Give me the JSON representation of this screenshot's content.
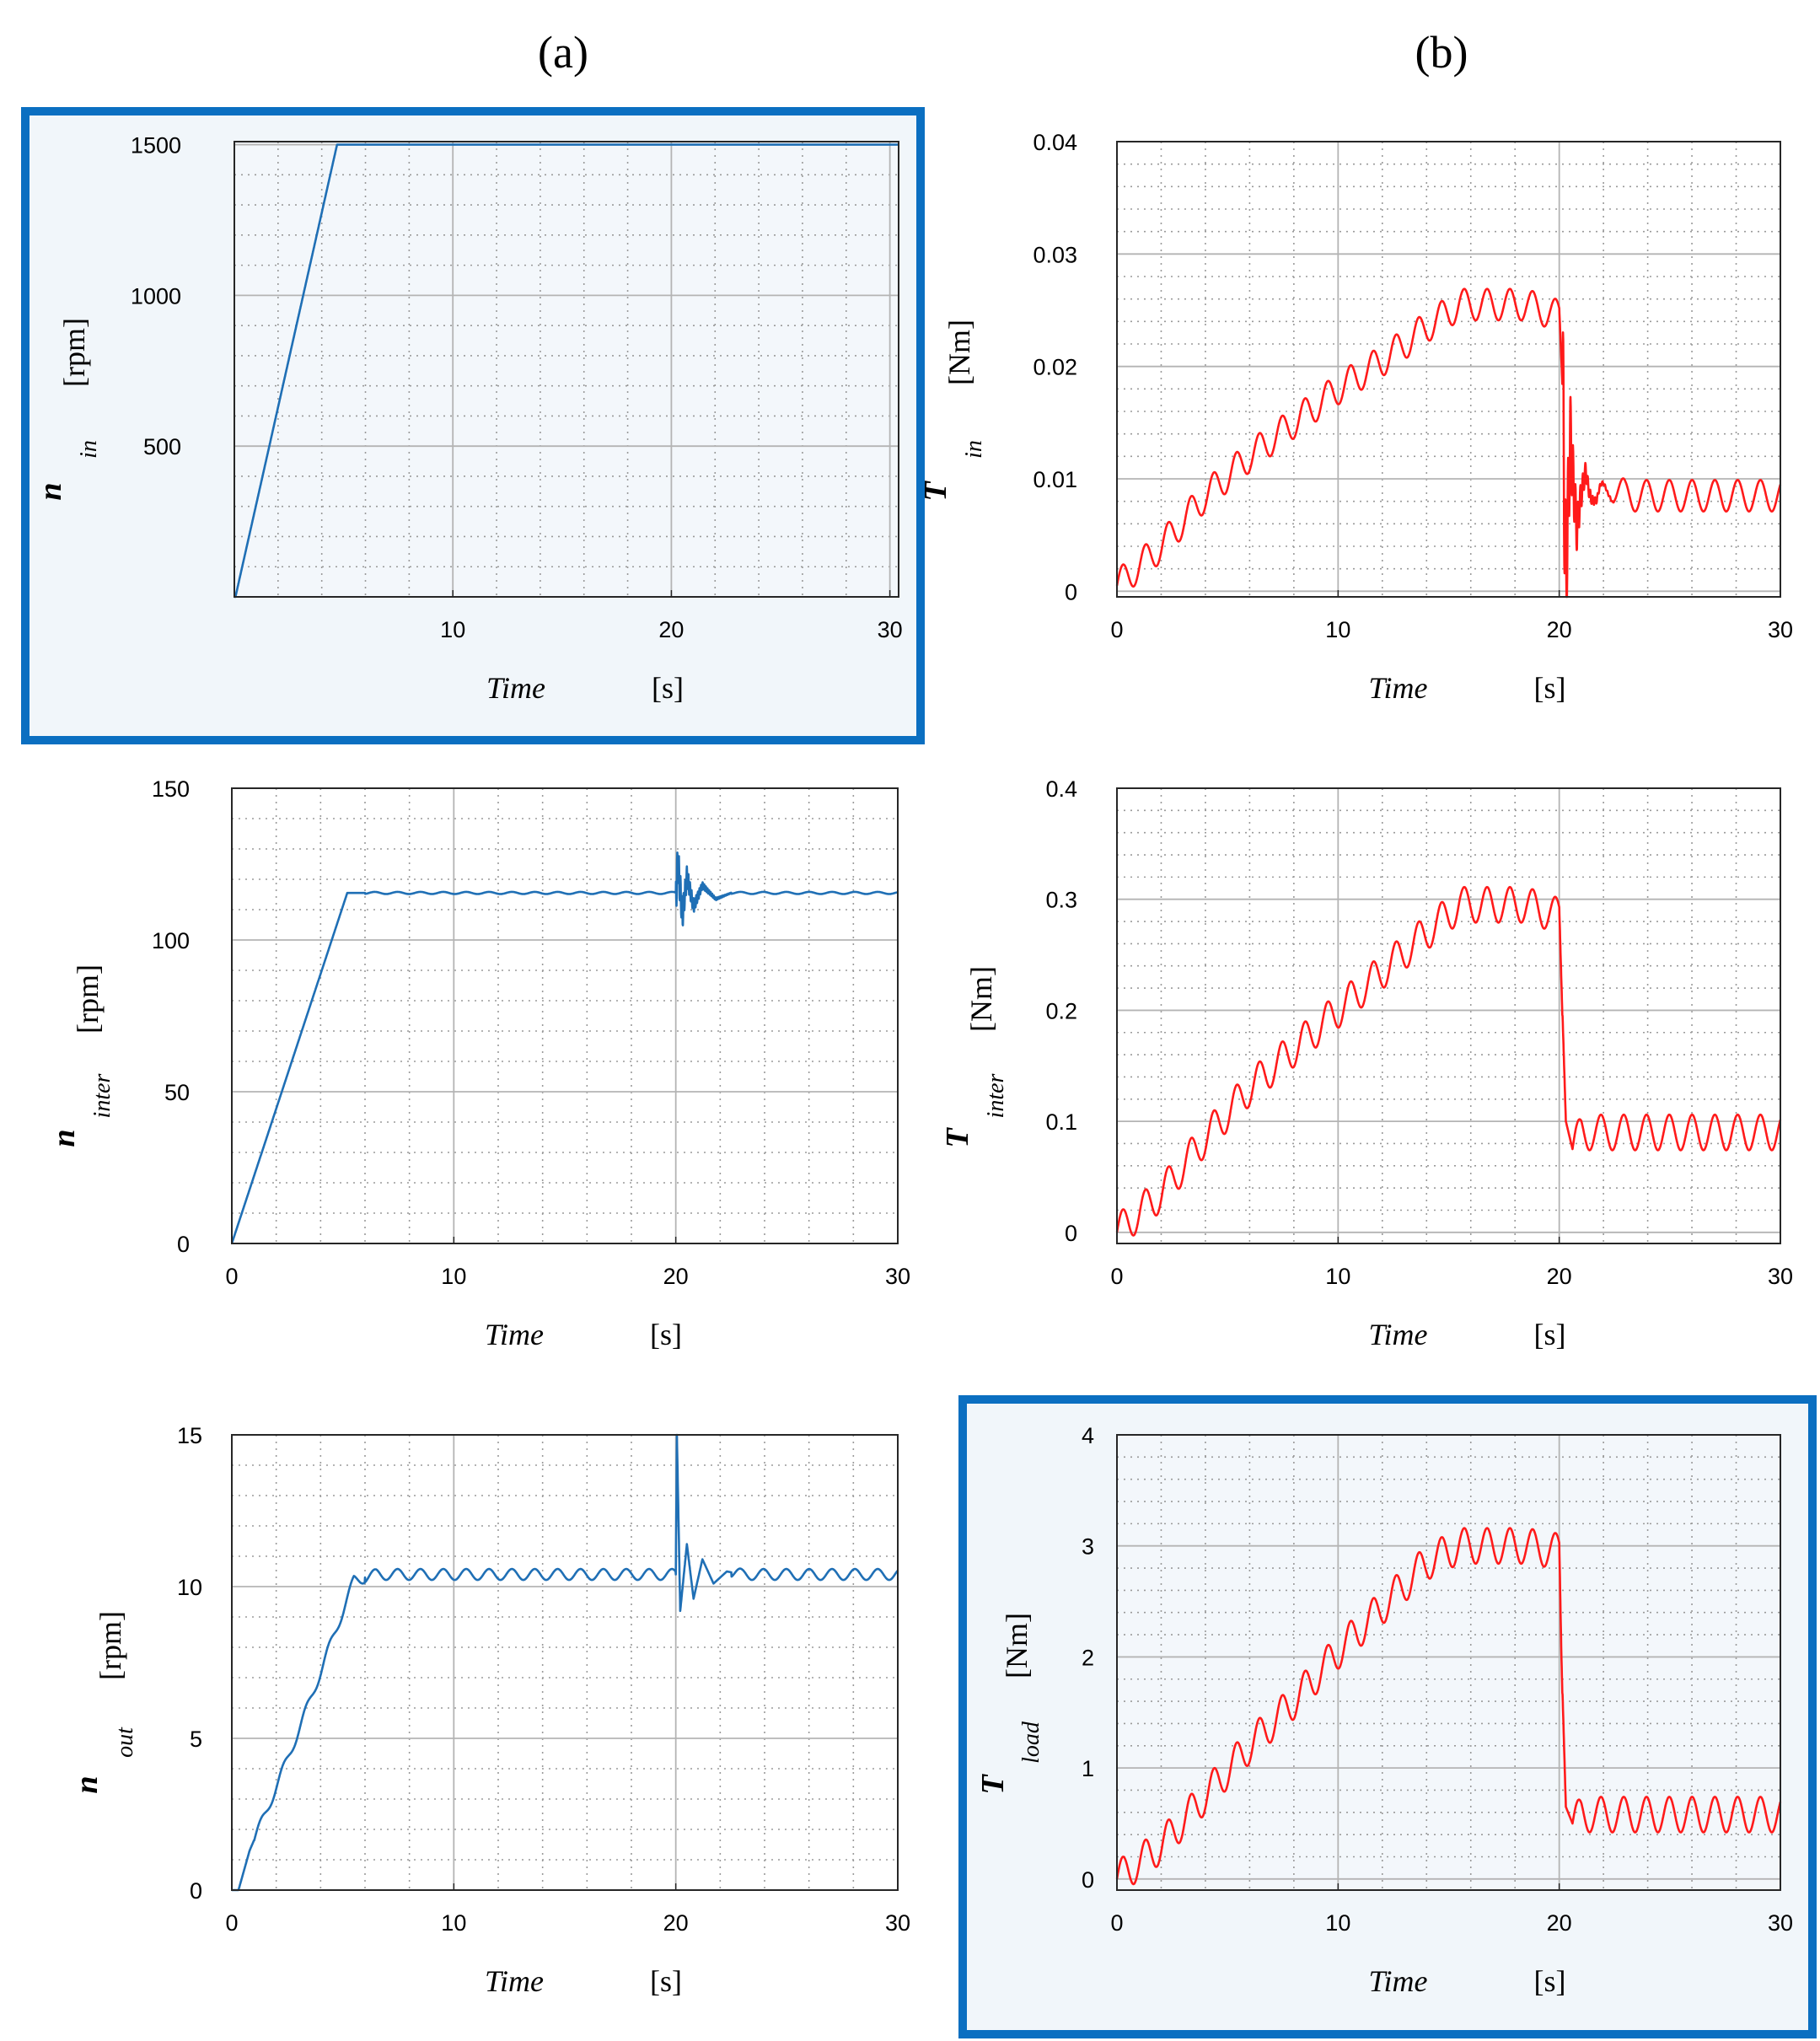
{
  "col_labels": {
    "a": "(a)",
    "b": "(b)"
  },
  "colors": {
    "blue_series": "#1f6fb5",
    "red_series": "#ff1a1a",
    "highlight_frame": "#0b6fc1",
    "highlight_fill": "#f1f6fa",
    "grid_major": "#b4b4b4",
    "grid_minor": "#9a9a9a"
  },
  "chart_data": [
    {
      "id": "n_in",
      "type": "line",
      "column": "a",
      "highlighted": true,
      "color_key": "blue_series",
      "xlabel": "Time",
      "xunit": "[s]",
      "ylabel_symbol": "n",
      "ylabel_sub": "in",
      "yunit": "[rpm]",
      "xlim": [
        0,
        30.4
      ],
      "ylim": [
        0,
        1510
      ],
      "xticks": [
        10,
        20,
        30
      ],
      "yticks": [
        500,
        1000,
        1500
      ],
      "grid": true,
      "minor_grid": true,
      "series": [
        {
          "x": [
            0.05,
            4.7,
            30.4
          ],
          "y": [
            0,
            1500,
            1500
          ]
        }
      ]
    },
    {
      "id": "T_in",
      "type": "line",
      "column": "b",
      "highlighted": false,
      "color_key": "red_series",
      "xlabel": "Time",
      "xunit": "[s]",
      "ylabel_symbol": "T",
      "ylabel_sub": "in",
      "yunit": "[Nm]",
      "xlim": [
        0,
        30
      ],
      "ylim": [
        -0.0005,
        0.04
      ],
      "xticks": [
        0,
        10,
        20,
        30
      ],
      "yticks": [
        0,
        0.01,
        0.02,
        0.03,
        0.04
      ],
      "grid": true,
      "minor_grid": true,
      "series": [
        {
          "x": [
            0,
            2,
            4,
            6,
            8,
            10,
            12,
            14,
            15.5,
            17,
            18.5,
            20,
            20.15,
            20.3,
            20.5,
            20.8,
            21.2,
            21.7,
            22.3,
            23,
            25,
            27,
            30
          ],
          "y": [
            0.0005,
            0.004,
            0.0085,
            0.012,
            0.015,
            0.018,
            0.0205,
            0.0235,
            0.0255,
            0.0255,
            0.0255,
            0.0245,
            0.0185,
            0.0005,
            0.014,
            0.004,
            0.0115,
            0.0075,
            0.0095,
            0.0085,
            0.0085,
            0.0085,
            0.0085
          ]
        }
      ]
    },
    {
      "id": "n_inter",
      "type": "line",
      "column": "a",
      "highlighted": false,
      "color_key": "blue_series",
      "xlabel": "Time",
      "xunit": "[s]",
      "ylabel_symbol": "n",
      "ylabel_sub": "inter",
      "yunit": "[rpm]",
      "xlim": [
        0,
        30
      ],
      "ylim": [
        0,
        150
      ],
      "xticks": [
        0,
        10,
        20,
        30
      ],
      "yticks": [
        0,
        50,
        100,
        150
      ],
      "grid": true,
      "minor_grid": true,
      "series": [
        {
          "x": [
            0,
            5.2,
            20,
            20.1,
            20.3,
            20.5,
            20.8,
            21.2,
            21.8,
            22.5,
            30
          ],
          "y": [
            0,
            115.5,
            115.5,
            125,
            108,
            121,
            111,
            118,
            113.5,
            115.5,
            115.5
          ]
        }
      ]
    },
    {
      "id": "T_inter",
      "type": "line",
      "column": "b",
      "highlighted": false,
      "color_key": "red_series",
      "xlabel": "Time",
      "xunit": "[s]",
      "ylabel_symbol": "T",
      "ylabel_sub": "inter",
      "yunit": "[Nm]",
      "xlim": [
        0,
        30
      ],
      "ylim": [
        -0.01,
        0.4
      ],
      "xticks": [
        0,
        10,
        20,
        30
      ],
      "yticks": [
        0,
        0.1,
        0.2,
        0.3,
        0.4
      ],
      "grid": true,
      "minor_grid": true,
      "series": [
        {
          "x": [
            0,
            2,
            4,
            6,
            8,
            10,
            12,
            14,
            15.5,
            17,
            18.5,
            20,
            20.15,
            20.3,
            20.6,
            21,
            22,
            25,
            30
          ],
          "y": [
            0,
            0.035,
            0.085,
            0.13,
            0.165,
            0.2,
            0.235,
            0.27,
            0.295,
            0.295,
            0.295,
            0.285,
            0.195,
            0.1,
            0.075,
            0.09,
            0.09,
            0.09,
            0.09
          ]
        }
      ]
    },
    {
      "id": "n_out",
      "type": "line",
      "column": "a",
      "highlighted": false,
      "color_key": "blue_series",
      "xlabel": "Time",
      "xunit": "[s]",
      "ylabel_symbol": "n",
      "ylabel_sub": "out",
      "yunit": "[rpm]",
      "xlim": [
        0,
        30
      ],
      "ylim": [
        0,
        15
      ],
      "xticks": [
        0,
        10,
        20,
        30
      ],
      "yticks": [
        0,
        5,
        10,
        15
      ],
      "grid": true,
      "minor_grid": true,
      "series": [
        {
          "x": [
            0.3,
            0.8,
            1.5,
            2.5,
            3.5,
            4.5,
            5.5,
            6.5,
            20,
            20.05,
            20.2,
            20.5,
            20.8,
            21.2,
            21.7,
            22.3,
            23,
            30
          ],
          "y": [
            0,
            1.3,
            2.5,
            4.3,
            6.2,
            8.2,
            10.2,
            10.4,
            10.4,
            15,
            9.2,
            11.4,
            9.6,
            10.9,
            10.1,
            10.5,
            10.4,
            10.4
          ]
        }
      ]
    },
    {
      "id": "T_load",
      "type": "line",
      "column": "b",
      "highlighted": true,
      "color_key": "red_series",
      "xlabel": "Time",
      "xunit": "[s]",
      "ylabel_symbol": "T",
      "ylabel_sub": "load",
      "yunit": "[Nm]",
      "xlim": [
        0,
        30
      ],
      "ylim": [
        -0.1,
        4
      ],
      "xticks": [
        0,
        10,
        20,
        30
      ],
      "yticks": [
        0,
        1,
        2,
        3,
        4
      ],
      "grid": true,
      "minor_grid": true,
      "series": [
        {
          "x": [
            0,
            2,
            4,
            6,
            8,
            10,
            12,
            14,
            15.5,
            17,
            18.5,
            20,
            20.1,
            20.3,
            20.6,
            21,
            22,
            25,
            30
          ],
          "y": [
            0,
            0.3,
            0.75,
            1.2,
            1.6,
            2.05,
            2.45,
            2.85,
            3.0,
            3.0,
            3.0,
            2.95,
            2.0,
            0.65,
            0.5,
            0.58,
            0.58,
            0.58,
            0.58
          ]
        }
      ]
    }
  ]
}
